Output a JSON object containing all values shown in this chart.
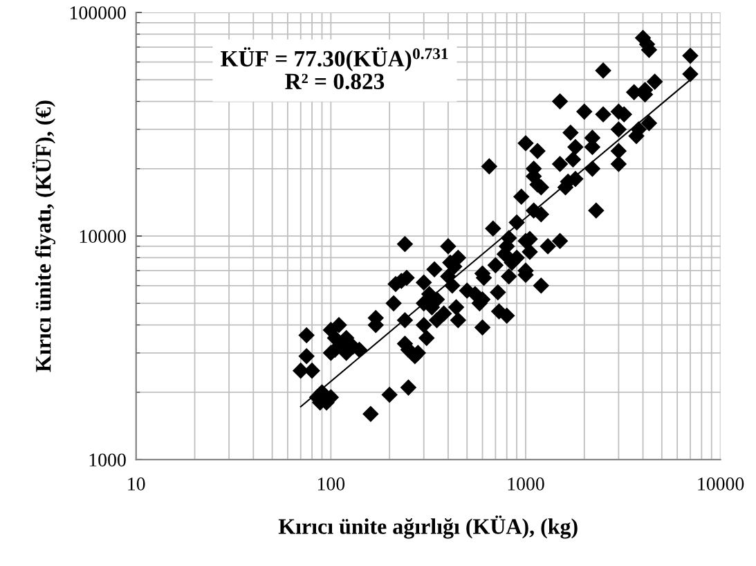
{
  "chart_data": {
    "type": "scatter",
    "xlabel": "Kırıcı ünite ağırlığı (KÜA), (kg)",
    "ylabel": "Kırıcı ünite fiyatı, (KÜF), (€)",
    "log": "xy",
    "grid": true,
    "xlim": [
      10,
      10000
    ],
    "ylim": [
      1000,
      100000
    ],
    "xticks": [
      10,
      100,
      1000,
      10000
    ],
    "yticks": [
      1000,
      10000,
      100000
    ],
    "annotations": [
      "KÜF = 77.30(KÜA)$^{0.731}$",
      "R² = 0.823"
    ],
    "series": [
      {
        "color": "#000000",
        "marker": "diamond",
        "x": [
          70,
          75,
          75,
          80,
          85,
          88,
          90,
          95,
          100,
          100,
          100,
          105,
          110,
          115,
          120,
          120,
          130,
          140,
          105,
          160,
          170,
          170,
          200,
          210,
          215,
          230,
          240,
          245,
          240,
          240,
          250,
          250,
          260,
          270,
          280,
          300,
          300,
          300,
          310,
          320,
          330,
          340,
          350,
          350,
          380,
          400,
          400,
          410,
          420,
          430,
          440,
          450,
          450,
          500,
          550,
          580,
          600,
          600,
          610,
          600,
          650,
          680,
          700,
          720,
          730,
          800,
          780,
          800,
          820,
          820,
          850,
          900,
          900,
          950,
          1000,
          1000,
          1000,
          1000,
          1050,
          1050,
          1100,
          1100,
          1100,
          1150,
          1200,
          1150,
          1200,
          1200,
          1300,
          1500,
          1500,
          1500,
          1600,
          1650,
          1700,
          1800,
          1750,
          1800,
          2000,
          2200,
          2200,
          2200,
          2300,
          2500,
          2500,
          3000,
          3000,
          3000,
          3000,
          3200,
          3600,
          3700,
          3800,
          4000,
          4100,
          4100,
          4200,
          4300,
          4300,
          4600,
          7000,
          7000
        ],
        "values": [
          2500,
          3600,
          2900,
          2500,
          1900,
          1800,
          2000,
          1800,
          1900,
          3800,
          3000,
          3500,
          4000,
          3300,
          3500,
          3000,
          3200,
          3100,
          3100,
          1600,
          4300,
          4000,
          1950,
          5000,
          6100,
          6300,
          9200,
          6500,
          4200,
          3300,
          3100,
          2100,
          3000,
          2900,
          3000,
          6200,
          5000,
          4000,
          3500,
          5500,
          4800,
          7100,
          5200,
          4200,
          4500,
          9000,
          6600,
          7600,
          6000,
          7300,
          4800,
          4200,
          8000,
          5700,
          5500,
          5000,
          3900,
          6800,
          6500,
          5200,
          20500,
          10800,
          7400,
          5600,
          4600,
          4400,
          8300,
          9000,
          9800,
          6600,
          7600,
          11500,
          8000,
          15000,
          26000,
          9500,
          7000,
          6700,
          8500,
          9700,
          20000,
          18500,
          13000,
          24000,
          12500,
          17000,
          16500,
          6000,
          9000,
          40000,
          21000,
          9500,
          16500,
          17500,
          29000,
          25000,
          22000,
          18000,
          36000,
          25000,
          27500,
          20000,
          13000,
          55000,
          35000,
          36000,
          30000,
          24000,
          21000,
          35000,
          44000,
          28000,
          30000,
          77000,
          43000,
          45000,
          72000,
          68000,
          32000,
          49000,
          64000,
          53000
        ]
      },
      {
        "type": "line",
        "color": "#000000",
        "line_style": "solid",
        "x": [
          70,
          700,
          7000
        ],
        "values": [
          1725,
          9290,
          50000
        ]
      }
    ]
  }
}
